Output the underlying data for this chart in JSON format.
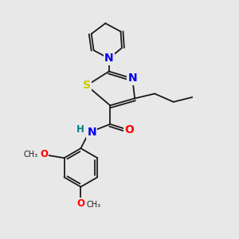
{
  "background_color": "#e8e8e8",
  "bond_color": "#1a1a1a",
  "atom_colors": {
    "N": "#0000ee",
    "S": "#cccc00",
    "O": "#ff0000",
    "H": "#008080",
    "C": "#1a1a1a"
  },
  "font_size_atom": 10,
  "font_size_small": 8.5,
  "lw": 1.3
}
